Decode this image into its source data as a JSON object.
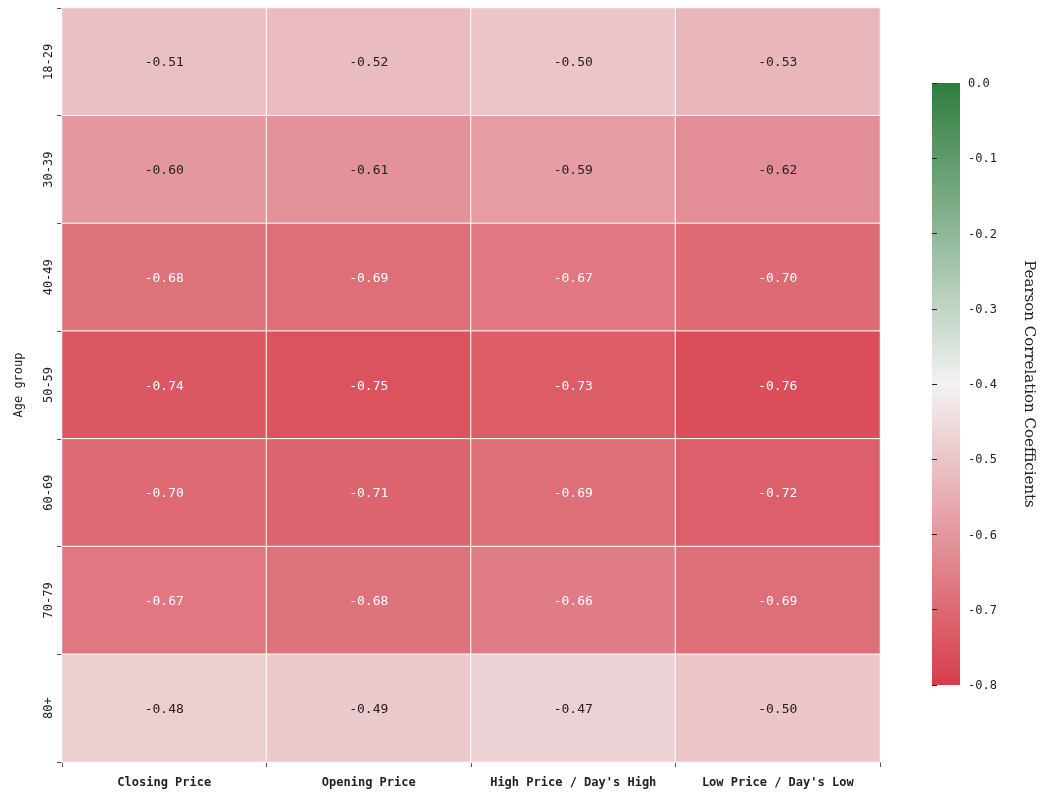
{
  "chart_data": {
    "type": "heatmap",
    "ylabel": "Age group",
    "clabel": "Pearson Correlation Coefficients",
    "categories": [
      "Closing Price",
      "Opening Price",
      "High Price / Day's High",
      "Low Price / Day's Low"
    ],
    "y_categories": [
      "18-29",
      "30-39",
      "40-49",
      "50-59",
      "60-69",
      "70-79",
      "80+"
    ],
    "cells": [
      [
        -0.51,
        -0.52,
        -0.5,
        -0.53
      ],
      [
        -0.6,
        -0.61,
        -0.59,
        -0.62
      ],
      [
        -0.68,
        -0.69,
        -0.67,
        -0.7
      ],
      [
        -0.74,
        -0.75,
        -0.73,
        -0.76
      ],
      [
        -0.7,
        -0.71,
        -0.69,
        -0.72
      ],
      [
        -0.67,
        -0.68,
        -0.66,
        -0.69
      ],
      [
        -0.48,
        -0.49,
        -0.47,
        -0.5
      ]
    ],
    "cell_labels": [
      [
        "-0.51",
        "-0.52",
        "-0.50",
        "-0.53"
      ],
      [
        "-0.60",
        "-0.61",
        "-0.59",
        "-0.62"
      ],
      [
        "-0.68",
        "-0.69",
        "-0.67",
        "-0.70"
      ],
      [
        "-0.74",
        "-0.75",
        "-0.73",
        "-0.76"
      ],
      [
        "-0.70",
        "-0.71",
        "-0.69",
        "-0.72"
      ],
      [
        "-0.67",
        "-0.68",
        "-0.66",
        "-0.69"
      ],
      [
        "-0.48",
        "-0.49",
        "-0.47",
        "-0.50"
      ]
    ],
    "clim": [
      -0.8,
      0
    ],
    "cticks": [
      {
        "value": 0,
        "label": "0.0"
      },
      -0.1,
      -0.2,
      -0.3,
      -0.4,
      -0.5,
      -0.6,
      -0.7,
      -0.8
    ]
  }
}
